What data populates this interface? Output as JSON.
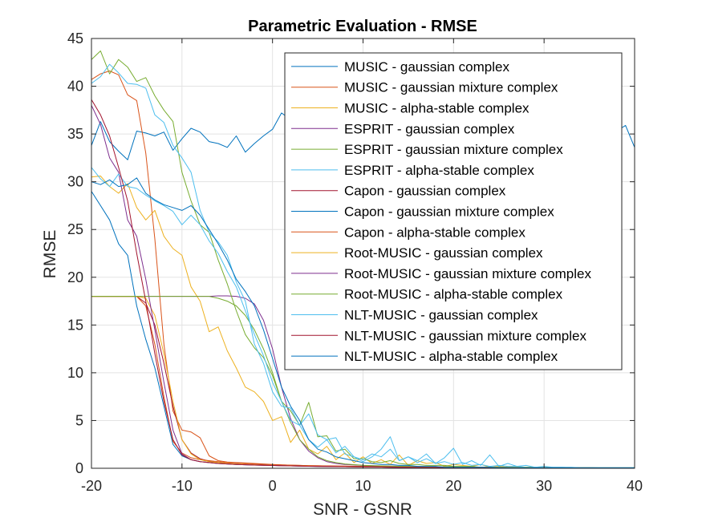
{
  "chart_data": {
    "type": "line",
    "title": "Parametric Evaluation - RMSE",
    "xlabel": "SNR - GSNR",
    "ylabel": "RMSE",
    "xlim": [
      -20,
      40
    ],
    "ylim": [
      0,
      45
    ],
    "xticks": [
      -20,
      -10,
      0,
      10,
      20,
      30,
      40
    ],
    "yticks": [
      0,
      5,
      10,
      15,
      20,
      25,
      30,
      35,
      40,
      45
    ],
    "grid": true,
    "legend_position": "top-right",
    "x": [
      -20,
      -19,
      -18,
      -17,
      -16,
      -15,
      -14,
      -13,
      -12,
      -11,
      -10,
      -9,
      -8,
      -7,
      -6,
      -5,
      -4,
      -3,
      -2,
      -1,
      0,
      1,
      2,
      3,
      4,
      5,
      6,
      7,
      8,
      9,
      10,
      11,
      12,
      13,
      14,
      15,
      16,
      17,
      18,
      19,
      20,
      21,
      22,
      23,
      24,
      25,
      26,
      27,
      28,
      29,
      30,
      31,
      32,
      33,
      34,
      35,
      36,
      37,
      38,
      39,
      40
    ],
    "series": [
      {
        "name": "MUSIC - gaussian complex",
        "color": "#0072BD",
        "values": [
          33.8,
          36.3,
          34.2,
          33.2,
          32.3,
          35.3,
          35.1,
          34.8,
          35.2,
          33.3,
          34.5,
          35.6,
          35.2,
          34.2,
          34.0,
          33.6,
          34.8,
          33.1,
          34.0,
          34.8,
          35.5,
          37.2,
          36.5,
          35.8,
          36.3,
          34.5,
          35.5,
          36.0,
          35.3,
          34.6,
          35.6,
          34.8,
          36.0,
          35.2,
          35.8,
          36.8,
          34.9,
          35.3,
          36.2,
          34.4,
          35.3,
          34.5,
          35.9,
          35.6,
          34.2,
          35.0,
          36.3,
          35.5,
          35.1,
          34.8,
          36.1,
          35.2,
          34.6,
          35.8,
          35.4,
          34.9,
          35.7,
          36.0,
          35.3,
          35.9,
          33.6
        ]
      },
      {
        "name": "MUSIC - gaussian mixture complex",
        "color": "#D95319",
        "values": [
          40.7,
          41.3,
          41.6,
          41.2,
          39.1,
          38.5,
          33.0,
          24.0,
          13.0,
          6.0,
          4.0,
          3.8,
          3.2,
          1.3,
          0.8,
          0.65,
          0.6,
          0.55,
          0.5,
          0.45,
          0.4,
          0.35,
          0.33,
          0.3,
          0.28,
          0.26,
          0.25,
          0.24,
          0.23,
          0.22,
          0.21,
          0.2,
          0.19,
          0.18,
          0.17,
          0.16,
          0.15,
          0.14,
          0.13,
          0.12,
          0.11,
          0.1,
          0.1,
          0.09,
          0.09,
          0.08,
          0.08,
          0.07,
          0.07,
          0.06,
          0.06,
          0.05,
          0.05,
          0.05,
          0.04,
          0.04,
          0.04,
          0.03,
          0.03,
          0.03,
          0.03
        ]
      },
      {
        "name": "MUSIC - alpha-stable complex",
        "color": "#EDB120",
        "values": [
          30.5,
          30.6,
          29.5,
          28.8,
          29.8,
          27.3,
          26.0,
          27.0,
          24.3,
          23.0,
          22.3,
          19.0,
          17.5,
          14.3,
          14.8,
          12.3,
          10.5,
          8.5,
          8.0,
          7.0,
          5.0,
          5.4,
          2.7,
          4.0,
          2.0,
          1.5,
          2.3,
          0.9,
          1.6,
          0.6,
          1.2,
          0.5,
          0.9,
          0.4,
          1.4,
          0.3,
          0.8,
          0.5,
          0.6,
          0.2,
          0.4,
          0.3,
          0.2,
          0.4,
          0.1,
          0.2,
          0.1,
          0.1,
          0.1,
          0.1,
          0.05,
          0.05,
          0.05,
          0.05,
          0.05,
          0.05,
          0.05,
          0.05,
          0.05,
          0.05,
          0.05
        ]
      },
      {
        "name": "ESPRIT - gaussian complex",
        "color": "#7E2F8E",
        "values": [
          18.0,
          18.0,
          18.0,
          18.0,
          18.0,
          18.0,
          18.0,
          18.0,
          18.0,
          18.0,
          18.0,
          18.0,
          18.0,
          18.0,
          18.05,
          18.05,
          18.0,
          17.8,
          17.2,
          15.5,
          12.5,
          8.5,
          5.2,
          3.0,
          1.8,
          1.1,
          0.7,
          0.5,
          0.4,
          0.35,
          0.3,
          0.28,
          0.25,
          0.23,
          0.21,
          0.2,
          0.18,
          0.17,
          0.16,
          0.15,
          0.14,
          0.13,
          0.12,
          0.11,
          0.1,
          0.1,
          0.09,
          0.08,
          0.08,
          0.07,
          0.07,
          0.06,
          0.06,
          0.05,
          0.05,
          0.05,
          0.04,
          0.04,
          0.04,
          0.03,
          0.03
        ]
      },
      {
        "name": "ESPRIT - gaussian mixture complex",
        "color": "#77AC30",
        "values": [
          42.8,
          43.7,
          41.3,
          42.8,
          42.0,
          40.5,
          40.9,
          39.0,
          37.5,
          36.3,
          31.0,
          28.0,
          25.5,
          24.7,
          21.8,
          19.3,
          16.5,
          14.0,
          12.6,
          11.6,
          9.7,
          7.0,
          6.0,
          4.5,
          6.9,
          3.3,
          3.4,
          1.8,
          2.0,
          1.0,
          1.0,
          0.7,
          0.6,
          0.8,
          0.5,
          0.4,
          0.4,
          0.3,
          0.3,
          0.3,
          0.2,
          0.2,
          0.2,
          0.1,
          0.1,
          0.1,
          0.1,
          0.1,
          0.1,
          0.1,
          0.05,
          0.05,
          0.05,
          0.05,
          0.05,
          0.05,
          0.05,
          0.05,
          0.05,
          0.05,
          0.05
        ]
      },
      {
        "name": "ESPRIT - alpha-stable complex",
        "color": "#4DBEEE",
        "values": [
          40.3,
          41.0,
          42.3,
          41.4,
          40.3,
          40.2,
          39.8,
          37.0,
          36.2,
          33.8,
          32.5,
          31.0,
          27.0,
          24.7,
          23.7,
          22.3,
          19.5,
          17.5,
          13.0,
          11.0,
          8.0,
          6.5,
          6.3,
          4.5,
          5.7,
          3.5,
          3.0,
          3.2,
          1.5,
          1.2,
          0.9,
          1.5,
          1.2,
          2.0,
          0.8,
          1.2,
          0.6,
          1.0,
          0.5,
          0.7,
          0.4,
          0.6,
          0.3,
          0.4,
          0.2,
          0.3,
          0.2,
          0.2,
          0.1,
          0.1,
          0.1,
          0.1,
          0.1,
          0.05,
          0.05,
          0.05,
          0.05,
          0.05,
          0.05,
          0.05,
          0.05
        ]
      },
      {
        "name": "Capon - gaussian complex",
        "color": "#A2142F",
        "values": [
          18.0,
          18.0,
          18.0,
          18.0,
          18.0,
          18.0,
          17.3,
          15.0,
          11.0,
          6.5,
          3.0,
          1.6,
          1.0,
          0.75,
          0.6,
          0.5,
          0.45,
          0.4,
          0.36,
          0.33,
          0.3,
          0.28,
          0.26,
          0.24,
          0.22,
          0.2,
          0.19,
          0.18,
          0.17,
          0.16,
          0.15,
          0.14,
          0.13,
          0.12,
          0.11,
          0.1,
          0.1,
          0.09,
          0.09,
          0.08,
          0.08,
          0.07,
          0.07,
          0.06,
          0.06,
          0.05,
          0.05,
          0.05,
          0.04,
          0.04,
          0.04,
          0.04,
          0.03,
          0.03,
          0.03,
          0.03,
          0.03,
          0.02,
          0.02,
          0.02,
          0.02
        ]
      },
      {
        "name": "Capon - gaussian mixture complex",
        "color": "#0072BD",
        "values": [
          29.0,
          27.5,
          26.0,
          23.5,
          22.3,
          17.0,
          13.5,
          10.5,
          6.5,
          2.5,
          1.3,
          0.9,
          0.7,
          0.6,
          0.5,
          0.45,
          0.4,
          0.37,
          0.34,
          0.31,
          0.29,
          0.27,
          0.25,
          0.23,
          0.21,
          0.2,
          0.19,
          0.18,
          0.17,
          0.16,
          0.15,
          0.14,
          0.13,
          0.12,
          0.11,
          0.1,
          0.1,
          0.09,
          0.09,
          0.08,
          0.08,
          0.07,
          0.07,
          0.06,
          0.06,
          0.05,
          0.05,
          0.05,
          0.04,
          0.04,
          0.04,
          0.04,
          0.03,
          0.03,
          0.03,
          0.03,
          0.03,
          0.02,
          0.02,
          0.02,
          0.02
        ]
      },
      {
        "name": "Capon - alpha-stable complex",
        "color": "#D95319",
        "values": [
          18.0,
          18.0,
          18.0,
          18.0,
          18.0,
          18.0,
          17.0,
          13.0,
          7.5,
          2.8,
          1.6,
          1.1,
          0.9,
          0.8,
          0.7,
          0.6,
          0.55,
          0.5,
          0.45,
          0.4,
          0.38,
          0.35,
          0.33,
          0.3,
          0.28,
          0.26,
          0.24,
          0.22,
          0.21,
          0.2,
          0.19,
          0.18,
          0.17,
          0.16,
          0.15,
          0.14,
          0.13,
          0.12,
          0.11,
          0.1,
          0.1,
          0.09,
          0.09,
          0.08,
          0.08,
          0.07,
          0.07,
          0.06,
          0.06,
          0.05,
          0.05,
          0.05,
          0.04,
          0.04,
          0.04,
          0.04,
          0.03,
          0.03,
          0.03,
          0.03,
          0.03
        ]
      },
      {
        "name": "Root-MUSIC - gaussian complex",
        "color": "#EDB120",
        "values": [
          18.0,
          18.0,
          18.0,
          18.0,
          18.0,
          18.0,
          17.8,
          16.0,
          12.0,
          7.0,
          3.0,
          1.5,
          0.9,
          0.7,
          0.6,
          0.5,
          0.45,
          0.4,
          0.36,
          0.33,
          0.3,
          0.28,
          0.26,
          0.24,
          0.22,
          0.2,
          0.19,
          0.18,
          0.17,
          0.16,
          0.15,
          0.14,
          0.13,
          0.12,
          0.11,
          0.1,
          0.1,
          0.09,
          0.09,
          0.08,
          0.08,
          0.07,
          0.07,
          0.06,
          0.06,
          0.05,
          0.05,
          0.05,
          0.04,
          0.04,
          0.04,
          0.04,
          0.03,
          0.03,
          0.03,
          0.03,
          0.03,
          0.02,
          0.02,
          0.02,
          0.02
        ]
      },
      {
        "name": "Root-MUSIC - gaussian mixture complex",
        "color": "#7E2F8E",
        "values": [
          38.0,
          36.0,
          32.5,
          31.0,
          26.0,
          24.3,
          19.8,
          14.5,
          9.0,
          4.0,
          1.5,
          0.9,
          0.7,
          0.6,
          0.5,
          0.45,
          0.4,
          0.37,
          0.34,
          0.31,
          0.29,
          0.27,
          0.25,
          0.23,
          0.21,
          0.2,
          0.19,
          0.18,
          0.17,
          0.16,
          0.15,
          0.14,
          0.13,
          0.12,
          0.11,
          0.1,
          0.1,
          0.09,
          0.09,
          0.08,
          0.08,
          0.07,
          0.07,
          0.06,
          0.06,
          0.05,
          0.05,
          0.05,
          0.04,
          0.04,
          0.04,
          0.04,
          0.03,
          0.03,
          0.03,
          0.03,
          0.03,
          0.02,
          0.02,
          0.02,
          0.02
        ]
      },
      {
        "name": "Root-MUSIC - alpha-stable complex",
        "color": "#77AC30",
        "values": [
          18.0,
          18.0,
          18.0,
          18.0,
          18.0,
          18.0,
          18.0,
          18.0,
          18.0,
          18.0,
          18.0,
          18.0,
          18.0,
          18.0,
          17.8,
          17.5,
          17.0,
          16.0,
          14.5,
          12.5,
          10.0,
          7.0,
          4.8,
          3.0,
          2.0,
          1.2,
          0.8,
          0.6,
          0.45,
          0.38,
          0.32,
          0.28,
          0.25,
          0.23,
          0.21,
          0.2,
          0.18,
          0.17,
          0.16,
          0.15,
          0.14,
          0.13,
          0.12,
          0.11,
          0.1,
          0.1,
          0.09,
          0.08,
          0.08,
          0.07,
          0.07,
          0.06,
          0.06,
          0.05,
          0.05,
          0.05,
          0.04,
          0.04,
          0.04,
          0.03,
          0.03
        ]
      },
      {
        "name": "NLT-MUSIC - gaussian complex",
        "color": "#4DBEEE",
        "values": [
          31.5,
          30.3,
          29.5,
          30.8,
          29.5,
          29.3,
          28.6,
          28.0,
          27.5,
          26.9,
          25.5,
          26.5,
          25.5,
          23.8,
          22.5,
          20.6,
          19.0,
          16.5,
          14.0,
          11.8,
          9.0,
          7.0,
          5.0,
          4.5,
          3.0,
          2.2,
          3.0,
          1.6,
          2.3,
          1.2,
          0.7,
          1.2,
          2.0,
          3.3,
          0.8,
          1.2,
          0.8,
          1.5,
          0.5,
          1.1,
          2.1,
          0.4,
          0.8,
          0.3,
          1.4,
          0.2,
          0.5,
          0.2,
          0.3,
          0.1,
          0.2,
          0.1,
          0.1,
          0.1,
          0.05,
          0.05,
          0.05,
          0.05,
          0.05,
          0.05,
          0.05
        ]
      },
      {
        "name": "NLT-MUSIC - gaussian mixture complex",
        "color": "#A2142F",
        "values": [
          38.6,
          37.0,
          34.8,
          31.5,
          28.0,
          22.5,
          17.5,
          12.0,
          7.0,
          3.0,
          1.4,
          0.9,
          0.7,
          0.6,
          0.5,
          0.45,
          0.4,
          0.37,
          0.34,
          0.31,
          0.29,
          0.27,
          0.25,
          0.23,
          0.21,
          0.2,
          0.19,
          0.18,
          0.17,
          0.16,
          0.15,
          0.14,
          0.13,
          0.12,
          0.11,
          0.1,
          0.1,
          0.09,
          0.09,
          0.08,
          0.08,
          0.07,
          0.07,
          0.06,
          0.06,
          0.05,
          0.05,
          0.05,
          0.04,
          0.04,
          0.04,
          0.04,
          0.03,
          0.03,
          0.03,
          0.03,
          0.03,
          0.02,
          0.02,
          0.02,
          0.02
        ]
      },
      {
        "name": "NLT-MUSIC - alpha-stable complex",
        "color": "#0072BD",
        "values": [
          30.0,
          29.7,
          30.2,
          29.5,
          29.7,
          30.4,
          28.8,
          28.1,
          27.6,
          27.3,
          27.0,
          27.5,
          26.5,
          25.0,
          23.5,
          21.8,
          19.8,
          18.5,
          17.0,
          14.5,
          11.5,
          8.5,
          6.5,
          5.0,
          3.0,
          2.0,
          1.7,
          1.2,
          1.0,
          0.8,
          0.6,
          0.5,
          0.4,
          0.4,
          0.3,
          0.3,
          0.2,
          0.2,
          0.2,
          0.1,
          0.1,
          0.1,
          0.1,
          0.1,
          0.1,
          0.05,
          0.05,
          0.05,
          0.05,
          0.05,
          0.05,
          0.05,
          0.05,
          0.05,
          0.05,
          0.05,
          0.05,
          0.05,
          0.05,
          0.05,
          0.05
        ]
      }
    ]
  }
}
